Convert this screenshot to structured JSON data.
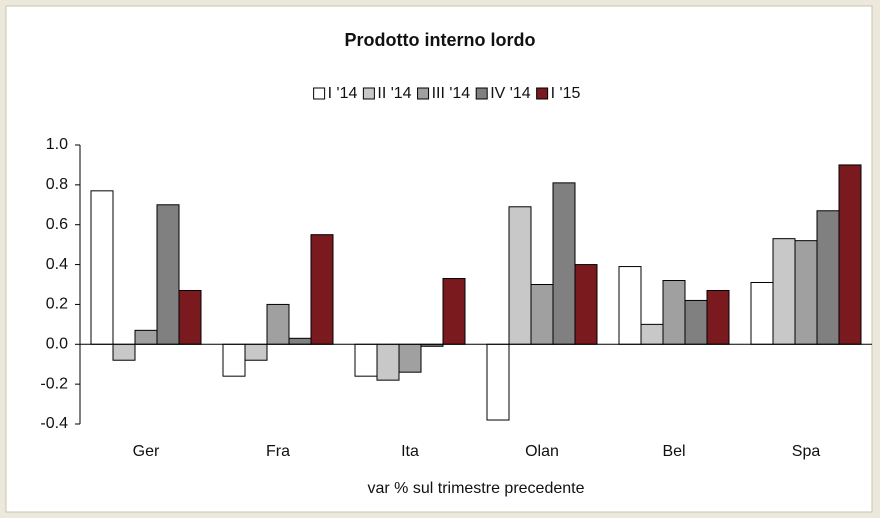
{
  "chart_data": {
    "type": "bar",
    "title": "Prodotto interno lordo",
    "x_label": "var % sul trimestre precedente",
    "categories": [
      "Ger",
      "Fra",
      "Ita",
      "Olan",
      "Bel",
      "Spa"
    ],
    "series": [
      {
        "name": "I '14",
        "color": "#ffffff",
        "values": [
          0.77,
          -0.16,
          -0.16,
          -0.38,
          0.39,
          0.31
        ]
      },
      {
        "name": "II '14",
        "color": "#c8c8c8",
        "values": [
          -0.08,
          -0.08,
          -0.18,
          0.69,
          0.1,
          0.53
        ]
      },
      {
        "name": "III '14",
        "color": "#a0a0a0",
        "values": [
          0.07,
          0.2,
          -0.14,
          0.3,
          0.32,
          0.52
        ]
      },
      {
        "name": "IV '14",
        "color": "#808080",
        "values": [
          0.7,
          0.03,
          -0.01,
          0.81,
          0.22,
          0.67
        ]
      },
      {
        "name": "I '15",
        "color": "#7b1a1e",
        "values": [
          0.27,
          0.55,
          0.33,
          0.4,
          0.27,
          0.9
        ]
      }
    ],
    "ylim": [
      -0.4,
      1.0
    ],
    "yticks": [
      -0.4,
      -0.2,
      {
        "value": 0,
        "label": "0.0"
      },
      0.2,
      0.4,
      0.6,
      0.8,
      {
        "value": 1,
        "label": "1.0"
      }
    ],
    "grid": false,
    "legend": "top"
  }
}
